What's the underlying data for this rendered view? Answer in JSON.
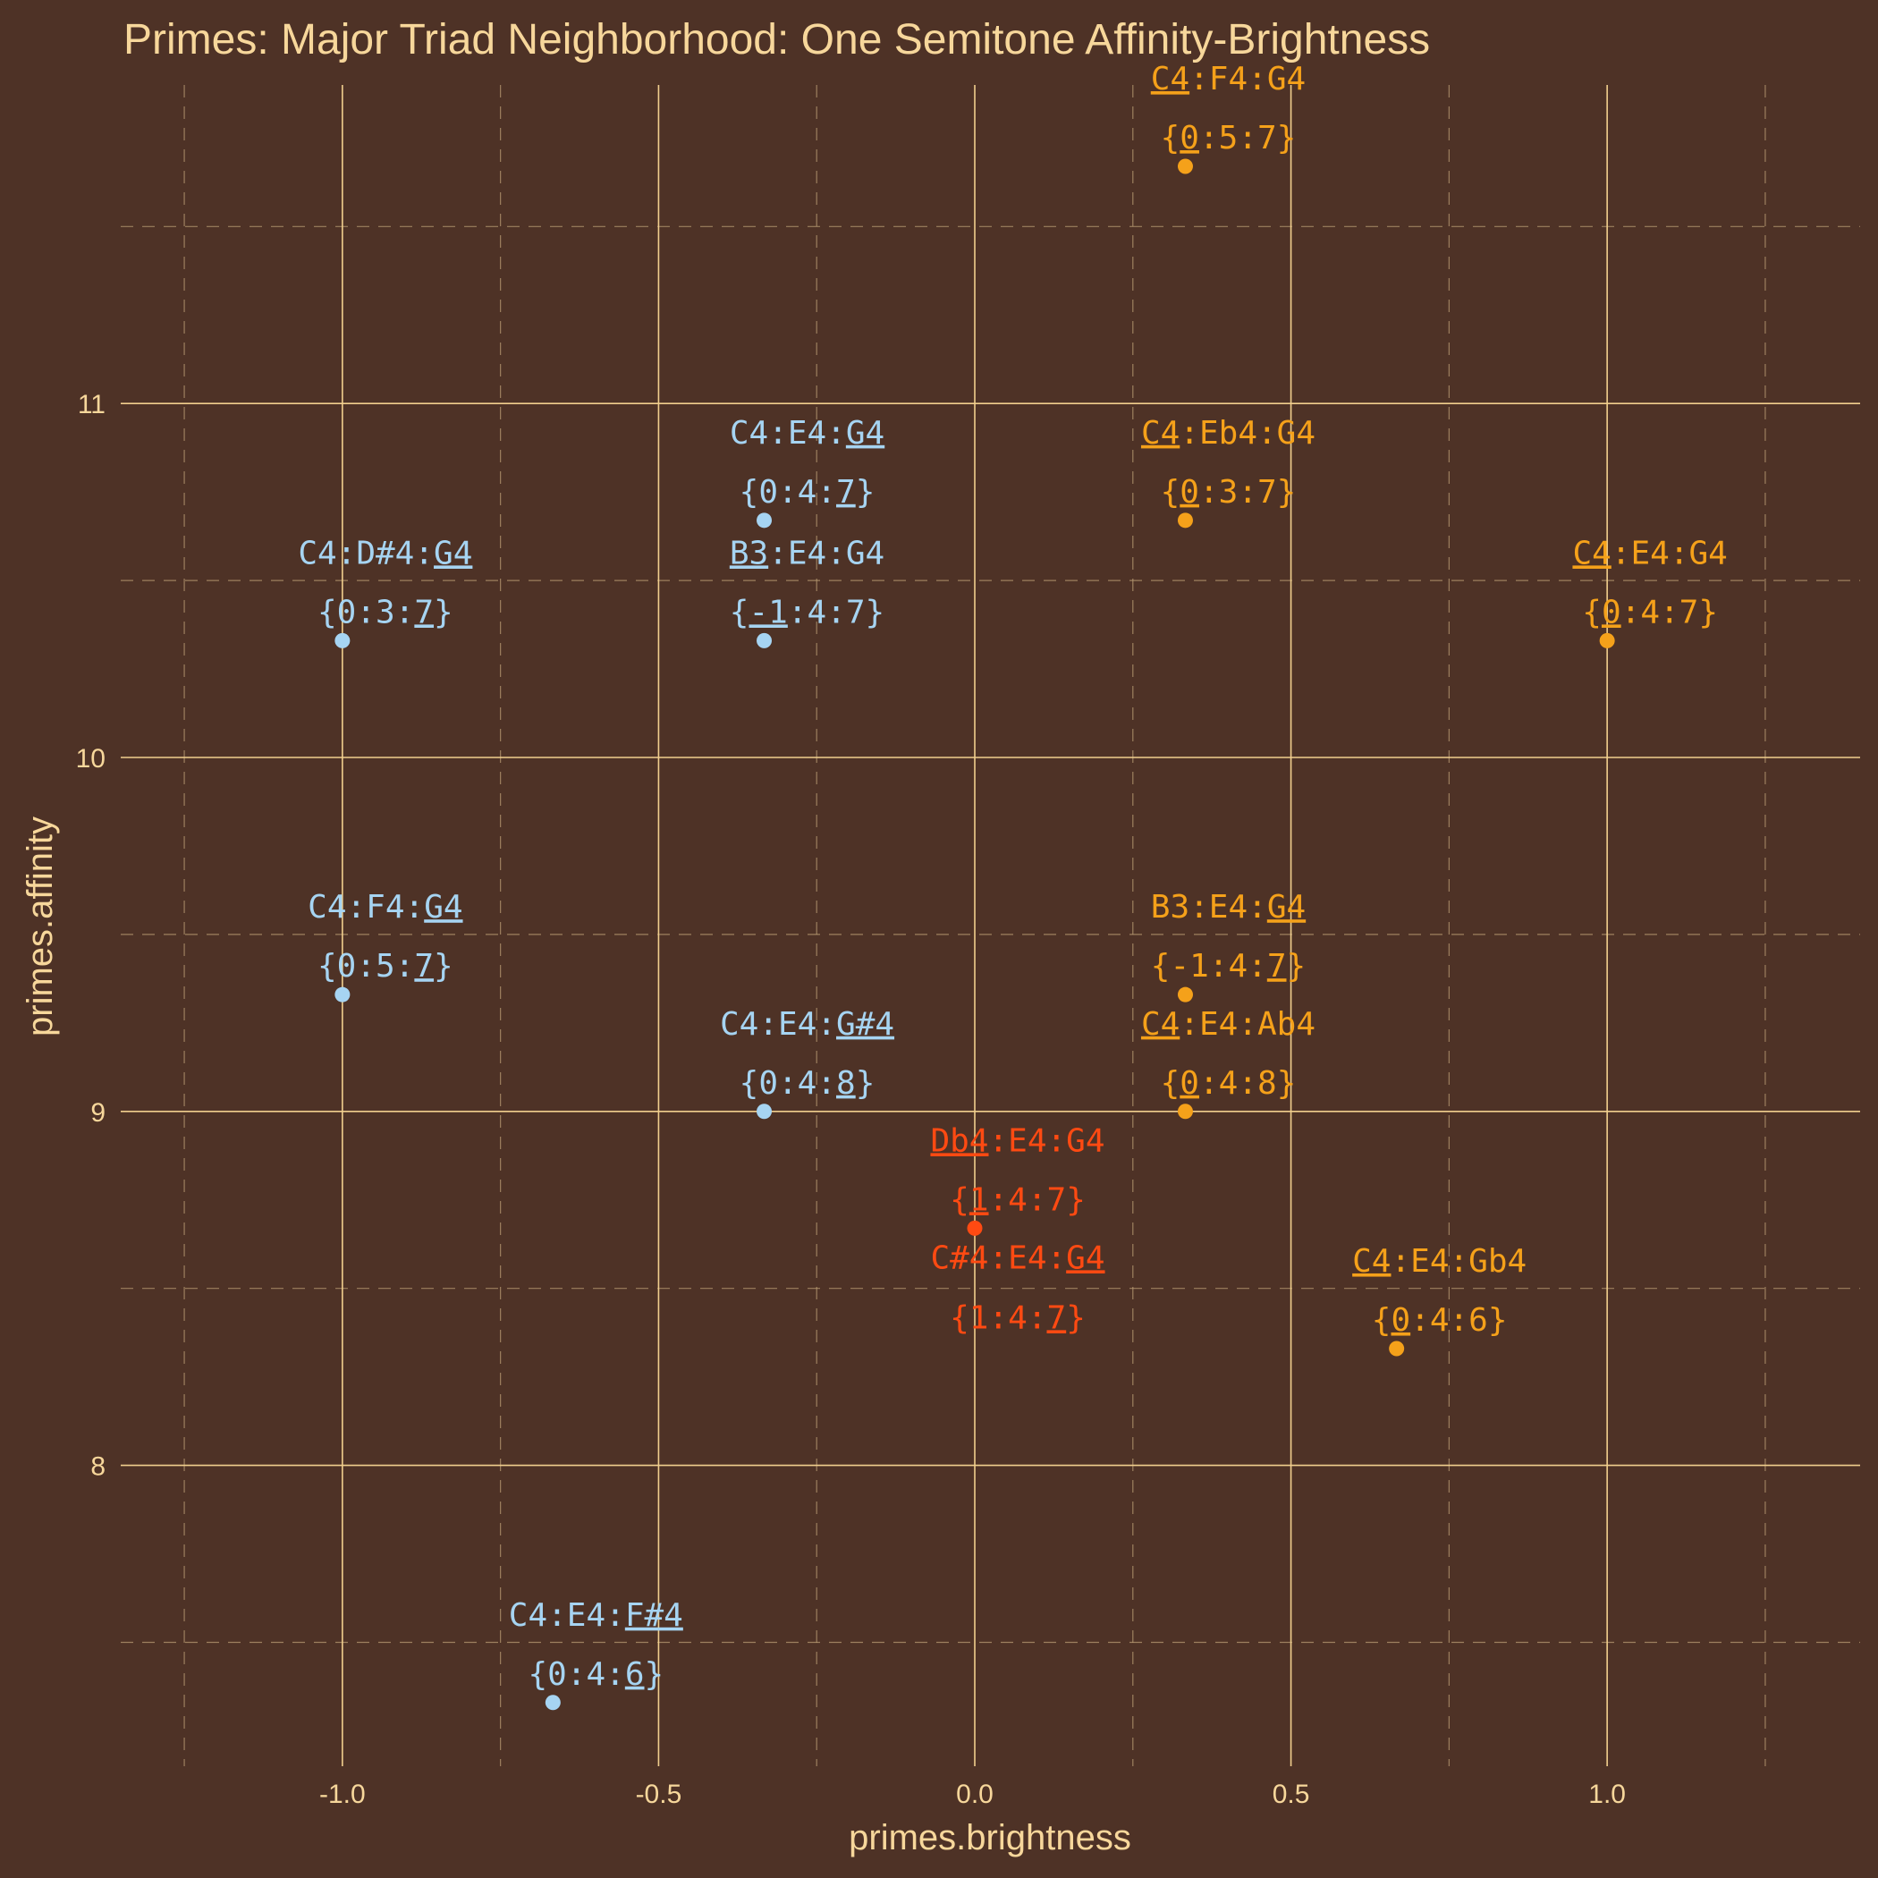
{
  "chart_data": {
    "type": "scatter",
    "title": "Primes: Major Triad Neighborhood: One Semitone Affinity-Brightness",
    "xlabel": "primes.brightness",
    "ylabel": "primes.affinity",
    "xlim": [
      -1.4,
      1.4
    ],
    "ylim": [
      7.15,
      11.9
    ],
    "x_ticks": [
      -1.0,
      -0.5,
      0.0,
      0.5,
      1.0
    ],
    "x_tick_labels": [
      "-1.0",
      "-0.5",
      "0.0",
      "0.5",
      "1.0"
    ],
    "x_minor_ticks": [
      -1.25,
      -0.75,
      -0.25,
      0.25,
      0.75,
      1.25
    ],
    "y_ticks": [
      8,
      9,
      10,
      11
    ],
    "y_tick_labels": [
      "8",
      "9",
      "10",
      "11"
    ],
    "y_minor_ticks": [
      7.5,
      8.5,
      9.5,
      10.5,
      11.5
    ],
    "grid": true,
    "legend": "none",
    "colors": {
      "blue": "#a6d4f2",
      "orange": "#f5a11a",
      "red": "#ff4a12",
      "background": "#4e3226",
      "text": "#f7d79b"
    },
    "points": [
      {
        "x": -1.0,
        "y": 10.33,
        "color": "blue",
        "line1": [
          [
            "C4:D#4:",
            false
          ],
          [
            "G4",
            true
          ],
          [
            "",
            false
          ]
        ],
        "line2": [
          [
            "{0:3:",
            false
          ],
          [
            "7",
            true
          ],
          [
            "}",
            false
          ],
          [
            "",
            false
          ]
        ]
      },
      {
        "x": -1.0,
        "y": 9.33,
        "color": "blue",
        "line1": [
          [
            "C4:F4:",
            false
          ],
          [
            "G4",
            true
          ],
          [
            "",
            false
          ]
        ],
        "line2": [
          [
            "{",
            false
          ],
          [
            "0",
            false
          ],
          [
            ":5:",
            false
          ],
          [
            "7",
            true
          ],
          [
            "}",
            false
          ],
          [
            "",
            false
          ]
        ]
      },
      {
        "x": -0.333,
        "y": 10.67,
        "color": "blue",
        "line1": [
          [
            "C4:E4:",
            false
          ],
          [
            "G4",
            true
          ],
          [
            "",
            false
          ]
        ],
        "line2": [
          [
            "{0:4:",
            false
          ],
          [
            "7",
            true
          ],
          [
            "}",
            false
          ],
          [
            "",
            false
          ]
        ]
      },
      {
        "x": -0.333,
        "y": 10.33,
        "color": "blue",
        "line1": [
          [
            "B3",
            true
          ],
          [
            ":E4:G4",
            false
          ],
          [
            "",
            false
          ]
        ],
        "line2": [
          [
            "{",
            false
          ],
          [
            "-1",
            true
          ],
          [
            ":4:7}",
            false
          ],
          [
            "",
            false
          ]
        ]
      },
      {
        "x": -0.333,
        "y": 9.0,
        "color": "blue",
        "line1": [
          [
            "C4:E4:",
            false
          ],
          [
            "G#4",
            true
          ],
          [
            "",
            false
          ]
        ],
        "line2": [
          [
            "{0:4:",
            false
          ],
          [
            "8",
            true
          ],
          [
            "}",
            false
          ],
          [
            "",
            false
          ]
        ]
      },
      {
        "x": -0.667,
        "y": 7.33,
        "color": "blue",
        "line1": [
          [
            "C4:E4:",
            false
          ],
          [
            "F#4",
            true
          ],
          [
            "",
            false
          ]
        ],
        "line2": [
          [
            "{0:4:",
            false
          ],
          [
            "6",
            true
          ],
          [
            "}",
            false
          ],
          [
            "",
            false
          ]
        ]
      },
      {
        "x": 0.333,
        "y": 11.67,
        "color": "orange",
        "line1": [
          [
            "C4",
            true
          ],
          [
            ":F4:G4",
            false
          ],
          [
            "",
            false
          ]
        ],
        "line2": [
          [
            "{",
            false
          ],
          [
            "0",
            true
          ],
          [
            ":5:7}",
            false
          ],
          [
            "",
            false
          ]
        ]
      },
      {
        "x": 0.333,
        "y": 10.67,
        "color": "orange",
        "line1": [
          [
            "C4",
            true
          ],
          [
            ":Eb4:G4",
            false
          ],
          [
            "",
            false
          ]
        ],
        "line2": [
          [
            "{",
            false
          ],
          [
            "0",
            true
          ],
          [
            ":3:7}",
            false
          ],
          [
            "",
            false
          ]
        ]
      },
      {
        "x": 1.0,
        "y": 10.33,
        "color": "orange",
        "line1": [
          [
            "C4",
            true
          ],
          [
            ":E4:G4",
            false
          ],
          [
            "",
            false
          ]
        ],
        "line2": [
          [
            "{",
            false
          ],
          [
            "0",
            true
          ],
          [
            ":4:7}",
            false
          ],
          [
            "",
            false
          ]
        ]
      },
      {
        "x": 0.333,
        "y": 9.33,
        "color": "orange",
        "line1": [
          [
            "B3:E4:",
            false
          ],
          [
            "G4",
            true
          ],
          [
            "",
            false
          ]
        ],
        "line2": [
          [
            "{-1:4:",
            false
          ],
          [
            "7",
            true
          ],
          [
            "}",
            false
          ],
          [
            "",
            false
          ]
        ]
      },
      {
        "x": 0.333,
        "y": 9.0,
        "color": "orange",
        "line1": [
          [
            "C4",
            true
          ],
          [
            ":E4:Ab4",
            false
          ],
          [
            "",
            false
          ]
        ],
        "line2": [
          [
            "{",
            false
          ],
          [
            "0",
            true
          ],
          [
            ":4:8}",
            false
          ],
          [
            "",
            false
          ]
        ]
      },
      {
        "x": 0.667,
        "y": 8.33,
        "color": "orange",
        "line1": [
          [
            "C4",
            true
          ],
          [
            ":E4:Gb4",
            false
          ],
          [
            "",
            false
          ]
        ],
        "line2": [
          [
            "{",
            false
          ],
          [
            "0",
            true
          ],
          [
            ":4:6}",
            false
          ],
          [
            "",
            false
          ]
        ]
      },
      {
        "x": 0.0,
        "y": 8.67,
        "color": "red",
        "line1": [
          [
            "Db4",
            true
          ],
          [
            ":E4:G4",
            false
          ],
          [
            "",
            false
          ]
        ],
        "line2": [
          [
            "{",
            false
          ],
          [
            "1",
            true
          ],
          [
            ":4:7}",
            false
          ],
          [
            "",
            false
          ]
        ]
      },
      {
        "x": 0.0,
        "y": 8.67,
        "color": "red",
        "line1": [
          [
            "C#4:E4:",
            false
          ],
          [
            "G4",
            true
          ],
          [
            "",
            false
          ]
        ],
        "line2": [
          [
            "{1:4:",
            false
          ],
          [
            "7",
            true
          ],
          [
            "}",
            false
          ],
          [
            "",
            false
          ]
        ]
      }
    ]
  }
}
